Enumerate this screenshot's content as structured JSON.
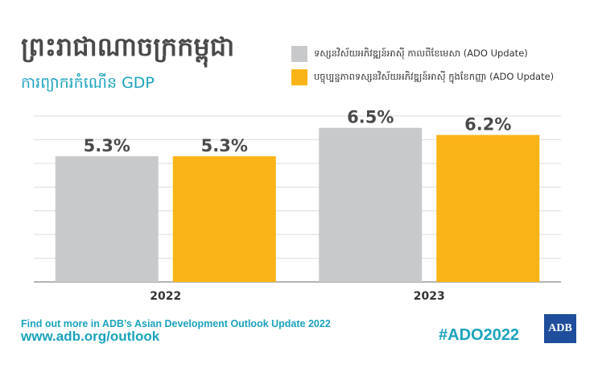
{
  "header": {
    "title": "ព្រះរាជាណាចក្រកម្ពុជា",
    "subtitle": "ការព្យាករកំណើន GDP"
  },
  "colors": {
    "previous": "#c8c9cb",
    "current": "#fbb417",
    "accent": "#1aa3bd",
    "grid": "#dcdcdc",
    "logo_bg": "#1f4e9c"
  },
  "chart_data": {
    "type": "bar",
    "title": "ព្រះរាជាណាចក្រកម្ពុជា",
    "subtitle": "ការព្យាករកំណើន GDP",
    "categories": [
      "2022",
      "2023"
    ],
    "series": [
      {
        "name": "ទស្សនវិស័យអភិវឌ្ឍន៍អាស៊ី កាលពីខែមេសា (ADO Update)",
        "values": [
          5.3,
          6.5
        ],
        "labels": [
          "5.3%",
          "6.5%"
        ],
        "color": "#c8c9cb"
      },
      {
        "name": "បច្ចុប្បន្នភាពទស្សនវិស័យអភិវឌ្ឍន៍អាស៊ី ក្នុងខែកញ្ញា (ADO Update)",
        "values": [
          5.3,
          6.2
        ],
        "labels": [
          "5.3%",
          "6.2%"
        ],
        "color": "#fbb417"
      }
    ],
    "xlabel": "",
    "ylabel": "",
    "ylim": [
      0,
      7.0
    ],
    "grid": true,
    "legend": "top-right"
  },
  "footer": {
    "line1": "Find out more in ADB’s Asian Development Outlook Update 2022",
    "line2": "www.adb.org/outlook",
    "hashtag": "#ADO2022",
    "logo": "ADB"
  }
}
